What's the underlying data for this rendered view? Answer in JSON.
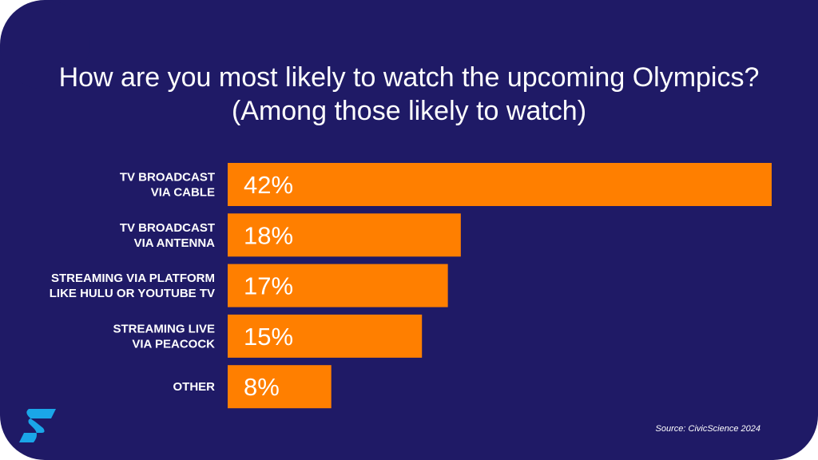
{
  "chart_data": {
    "type": "bar",
    "orientation": "horizontal",
    "title": "How are you most likely to watch the upcoming Olympics?",
    "subtitle": "(Among those likely to watch)",
    "categories": [
      [
        "TV BROADCAST",
        "VIA CABLE"
      ],
      [
        "TV BROADCAST",
        "VIA ANTENNA"
      ],
      [
        "STREAMING VIA PLATFORM",
        "LIKE HULU OR YOUTUBE TV"
      ],
      [
        "STREAMING LIVE",
        "VIA PEACOCK"
      ],
      [
        "OTHER"
      ]
    ],
    "values": [
      42,
      18,
      17,
      15,
      8
    ],
    "value_labels": [
      "42%",
      "18%",
      "17%",
      "15%",
      "8%"
    ],
    "xlim": [
      0,
      42
    ],
    "grid": false,
    "bar_color": "#ff7f00",
    "background_color": "#1f1a66",
    "text_color": "#ffffff"
  },
  "source": "Source: CivicScience 2024",
  "logo_icon": "civicscience-s-logo"
}
